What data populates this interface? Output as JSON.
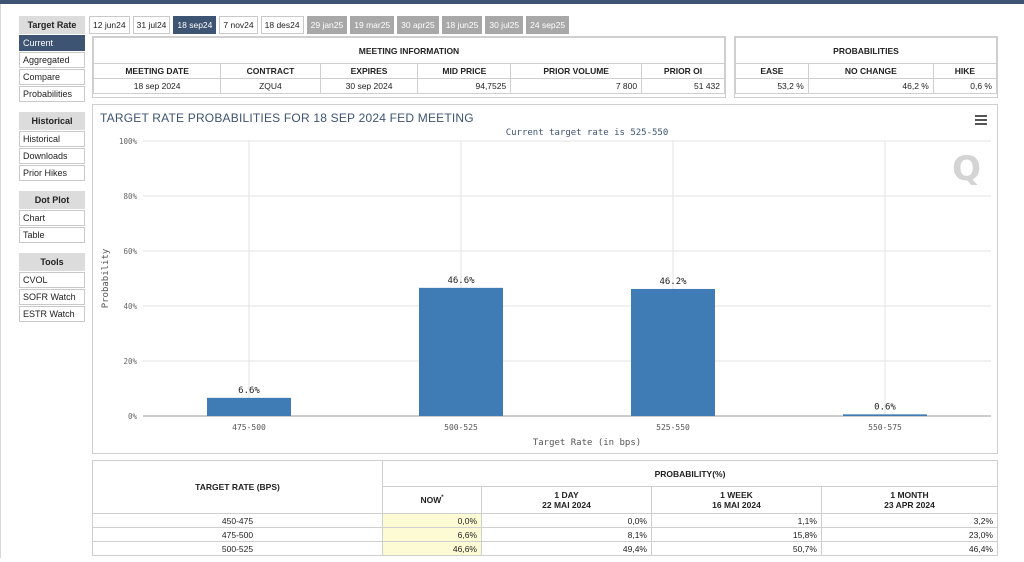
{
  "sidebar": {
    "sections": [
      {
        "title": "Target Rate",
        "items": [
          {
            "label": "Current",
            "active": true
          },
          {
            "label": "Aggregated",
            "active": false
          },
          {
            "label": "Compare",
            "active": false
          },
          {
            "label": "Probabilities",
            "active": false
          }
        ]
      },
      {
        "title": "Historical",
        "items": [
          {
            "label": "Historical",
            "active": false
          },
          {
            "label": "Downloads",
            "active": false
          },
          {
            "label": "Prior Hikes",
            "active": false
          }
        ]
      },
      {
        "title": "Dot Plot",
        "items": [
          {
            "label": "Chart",
            "active": false
          },
          {
            "label": "Table",
            "active": false
          }
        ]
      },
      {
        "title": "Tools",
        "items": [
          {
            "label": "CVOL",
            "active": false
          },
          {
            "label": "SOFR Watch",
            "active": false
          },
          {
            "label": "ESTR Watch",
            "active": false
          }
        ]
      }
    ]
  },
  "tabs": [
    {
      "label": "12 jun24",
      "state": "normal"
    },
    {
      "label": "31 jul24",
      "state": "normal"
    },
    {
      "label": "18 sep24",
      "state": "active"
    },
    {
      "label": "7 nov24",
      "state": "normal"
    },
    {
      "label": "18 des24",
      "state": "normal"
    },
    {
      "label": "29 jan25",
      "state": "disabled"
    },
    {
      "label": "19 mar25",
      "state": "disabled"
    },
    {
      "label": "30 apr25",
      "state": "disabled"
    },
    {
      "label": "18 jun25",
      "state": "disabled"
    },
    {
      "label": "30 jul25",
      "state": "disabled"
    },
    {
      "label": "24 sep25",
      "state": "disabled"
    }
  ],
  "meeting_info": {
    "title": "MEETING INFORMATION",
    "headers": [
      "MEETING DATE",
      "CONTRACT",
      "EXPIRES",
      "MID PRICE",
      "PRIOR VOLUME",
      "PRIOR OI"
    ],
    "row": [
      "18 sep 2024",
      "ZQU4",
      "30 sep 2024",
      "94,7525",
      "7 800",
      "51 432"
    ]
  },
  "probabilities": {
    "title": "PROBABILITIES",
    "headers": [
      "EASE",
      "NO CHANGE",
      "HIKE"
    ],
    "row": [
      "53,2 %",
      "46,2 %",
      "0,6 %"
    ]
  },
  "chart": {
    "title": "TARGET RATE PROBABILITIES FOR 18 SEP 2024 FED MEETING",
    "subtitle": "Current target rate is 525-550",
    "logo": "Q",
    "bar_color": "#3f7cb5"
  },
  "chart_data": {
    "type": "bar",
    "title": "TARGET RATE PROBABILITIES FOR 18 SEP 2024 FED MEETING",
    "subtitle": "Current target rate is 525-550",
    "xlabel": "Target Rate (in bps)",
    "ylabel": "Probability",
    "categories": [
      "475-500",
      "500-525",
      "525-550",
      "550-575"
    ],
    "values": [
      6.6,
      46.6,
      46.2,
      0.6
    ],
    "data_labels": [
      "6.6%",
      "46.6%",
      "46.2%",
      "0.6%"
    ],
    "yticks": [
      0,
      20,
      40,
      60,
      80,
      100
    ],
    "ytick_labels": [
      "0%",
      "20%",
      "40%",
      "60%",
      "80%",
      "100%"
    ],
    "ylim": [
      0,
      100
    ],
    "grid": true
  },
  "bottom_table": {
    "col1_header": "TARGET RATE (BPS)",
    "group_header": "PROBABILITY(%)",
    "sub_headers": [
      {
        "line1": "NOW",
        "line2": "",
        "marker": "*"
      },
      {
        "line1": "1 DAY",
        "line2": "22 MAI 2024",
        "marker": ""
      },
      {
        "line1": "1 WEEK",
        "line2": "16 MAI 2024",
        "marker": ""
      },
      {
        "line1": "1 MONTH",
        "line2": "23 APR 2024",
        "marker": ""
      }
    ],
    "rows": [
      {
        "rate": "450-475",
        "values": [
          "0,0%",
          "0,0%",
          "1,1%",
          "3,2%"
        ]
      },
      {
        "rate": "475-500",
        "values": [
          "6,6%",
          "8,1%",
          "15,8%",
          "23,0%"
        ]
      },
      {
        "rate": "500-525",
        "values": [
          "46,6%",
          "49,4%",
          "50,7%",
          "46,4%"
        ]
      }
    ]
  }
}
